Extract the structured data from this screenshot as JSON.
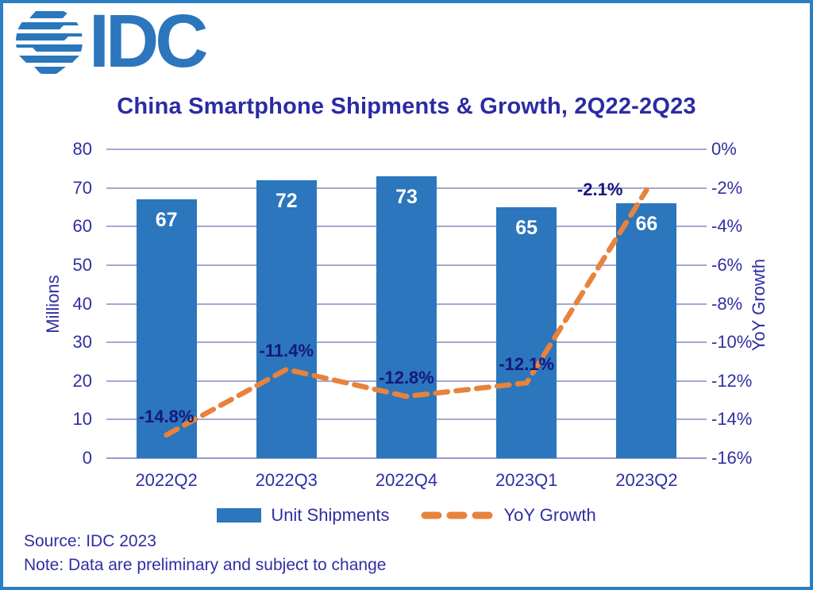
{
  "brand": {
    "logo_text": "IDC"
  },
  "chart_data": {
    "type": "combo bar+line",
    "title": "China Smartphone Shipments & Growth, 2Q22-2Q23",
    "categories": [
      "2022Q2",
      "2022Q3",
      "2022Q4",
      "2023Q1",
      "2023Q2"
    ],
    "series": [
      {
        "name": "Unit Shipments",
        "type": "bar",
        "axis": "left",
        "values": [
          67,
          72,
          73,
          65,
          66
        ]
      },
      {
        "name": "YoY Growth",
        "type": "line",
        "axis": "right",
        "values": [
          -14.8,
          -11.4,
          -12.8,
          -12.1,
          -2.1
        ],
        "labels": [
          "-14.8%",
          "-11.4%",
          "-12.8%",
          "-12.1%",
          "-2.1%"
        ]
      }
    ],
    "left_axis": {
      "label": "Millions",
      "min": 0,
      "max": 80,
      "ticks": [
        "80",
        "70",
        "60",
        "50",
        "40",
        "30",
        "20",
        "10",
        "0"
      ]
    },
    "right_axis": {
      "label": "YoY Growth",
      "min": -16,
      "max": 0,
      "ticks": [
        "0%",
        "-2%",
        "-4%",
        "-6%",
        "-8%",
        "-10%",
        "-12%",
        "-14%",
        "-16%"
      ]
    },
    "grid": true,
    "legend_position": "bottom"
  },
  "footer": {
    "source": "Source: IDC 2023",
    "note": "Note: Data are preliminary and subject to change"
  },
  "colors": {
    "bar": "#2B76BC",
    "line": "#E8823C",
    "grid": "#A6A6D6",
    "axis_text": "#2F2FA2",
    "title_text": "#2B2BA4",
    "data_label": "#17177C",
    "bar_label": "#FFFFFF",
    "border": "#2A80C5",
    "logo": "#2B76BC"
  }
}
